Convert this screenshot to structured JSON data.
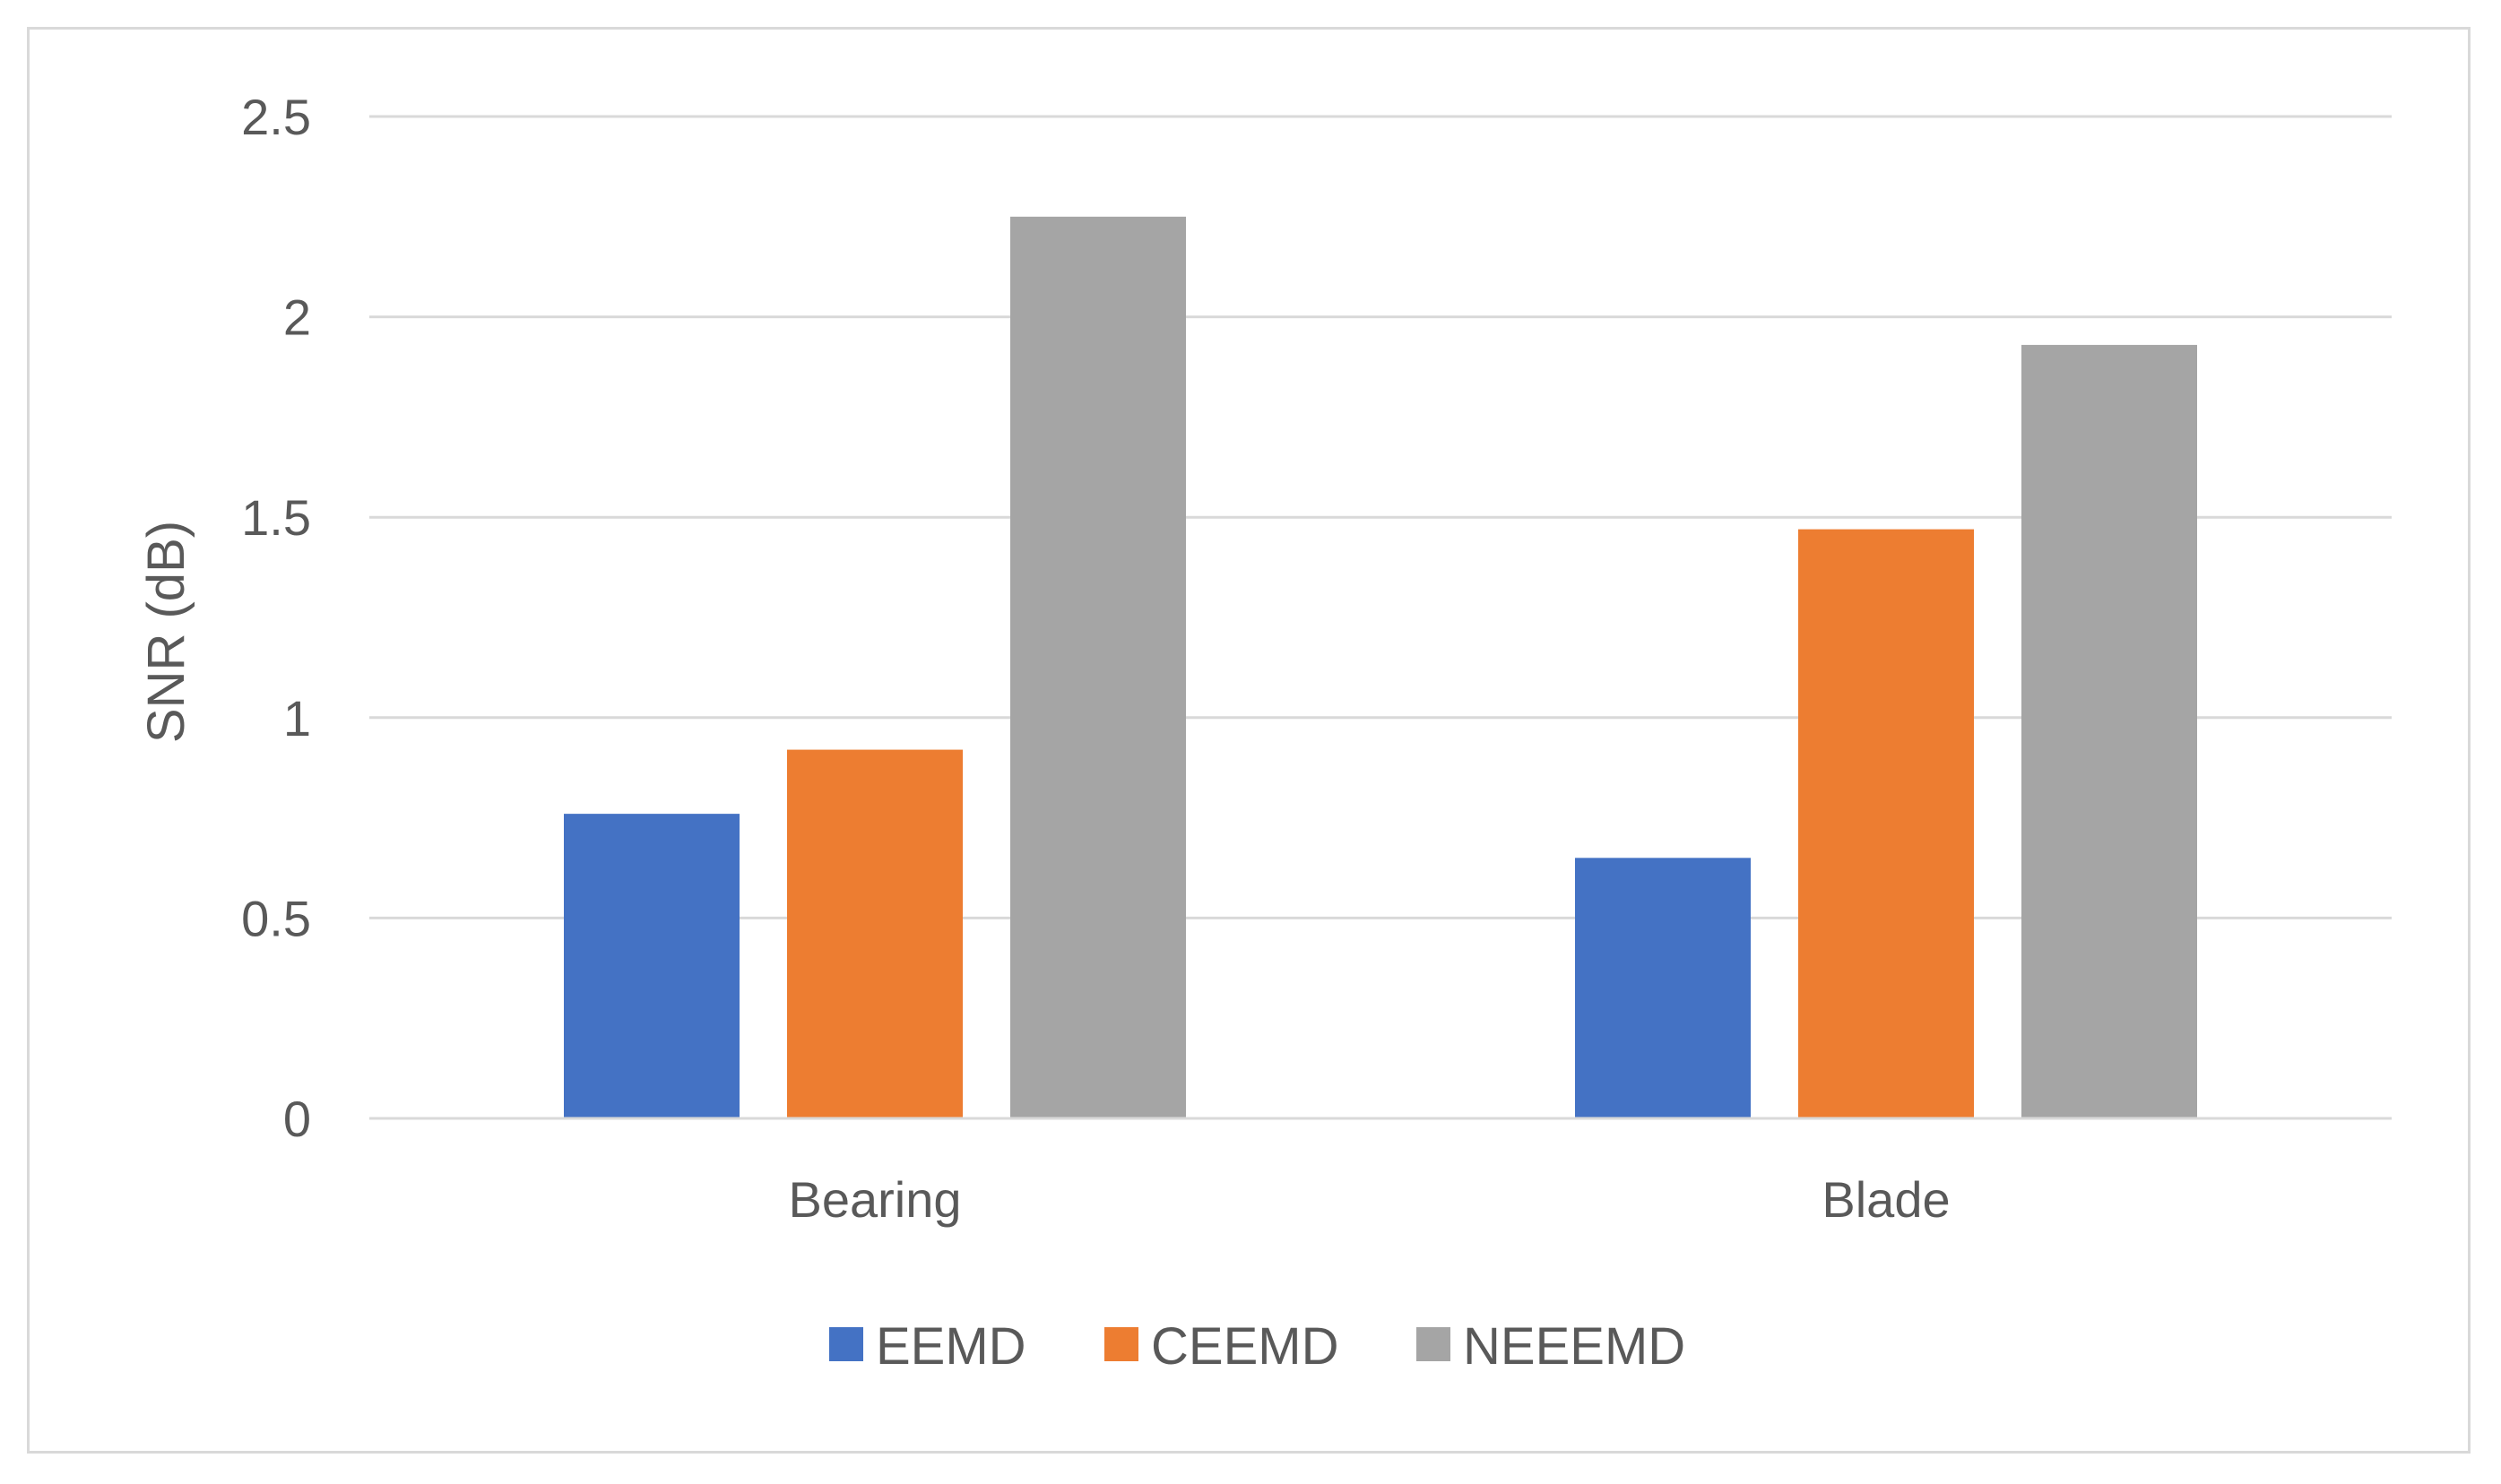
{
  "chart_data": {
    "type": "bar",
    "title": "",
    "xlabel": "",
    "ylabel": "SNR (dB)",
    "ylim": [
      0,
      2.5
    ],
    "yticks": [
      0,
      0.5,
      1,
      1.5,
      2,
      2.5
    ],
    "ytick_labels": [
      "0",
      "0.5",
      "1",
      "1.5",
      "2",
      "2.5"
    ],
    "grid": true,
    "legend_position": "bottom",
    "categories": [
      "Bearing",
      "Blade"
    ],
    "series": [
      {
        "name": "EEMD",
        "color": "#4472C4",
        "values": [
          0.76,
          0.65
        ]
      },
      {
        "name": "CEEMD",
        "color": "#ED7D31",
        "values": [
          0.92,
          1.47
        ]
      },
      {
        "name": "NEEEMD",
        "color": "#A5A5A5",
        "values": [
          2.25,
          1.93
        ]
      }
    ]
  }
}
